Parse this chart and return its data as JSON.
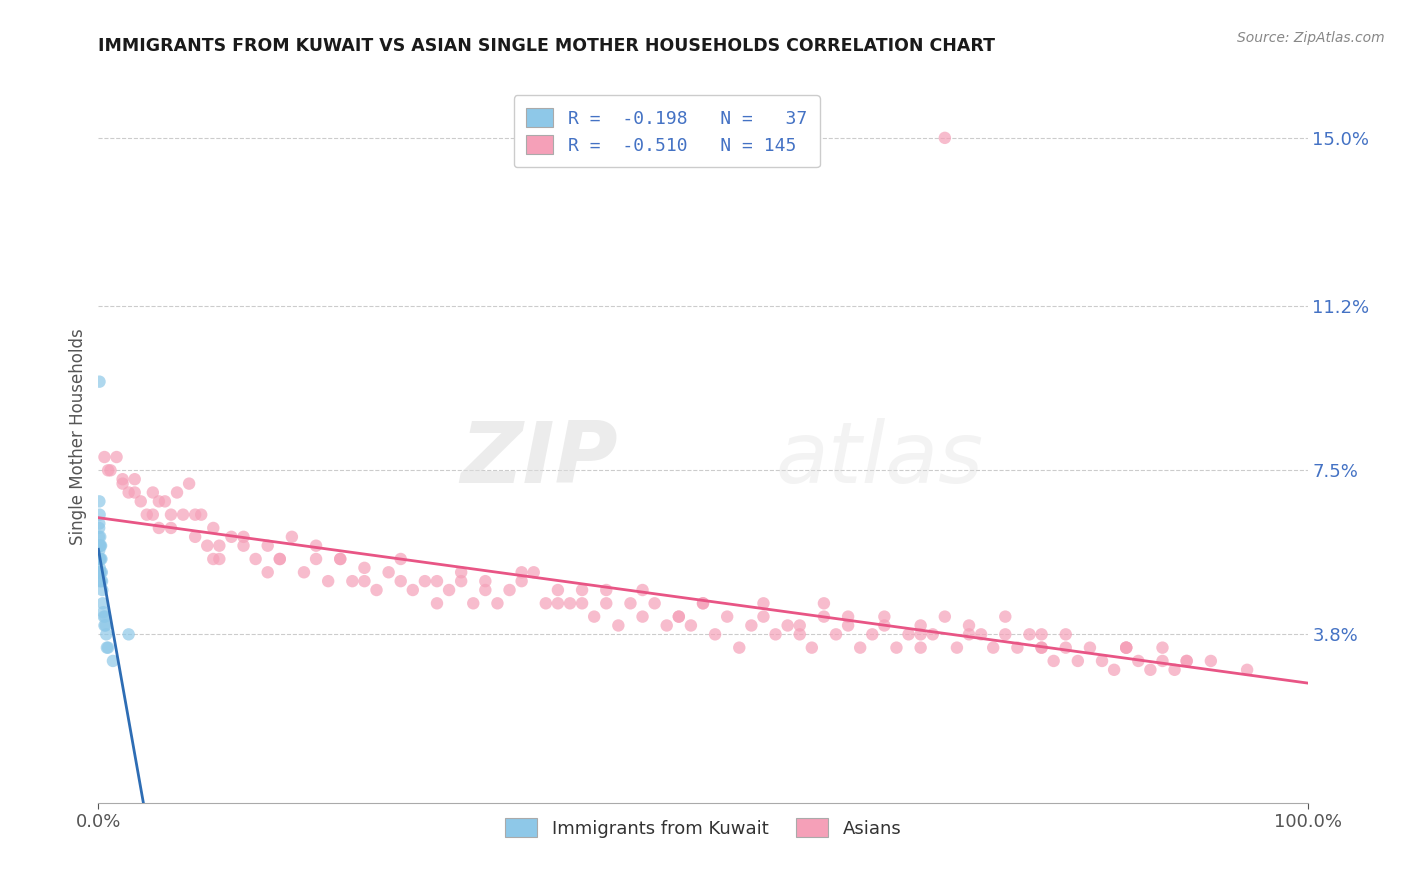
{
  "title": "IMMIGRANTS FROM KUWAIT VS ASIAN SINGLE MOTHER HOUSEHOLDS CORRELATION CHART",
  "source": "Source: ZipAtlas.com",
  "ylabel": "Single Mother Households",
  "xlim": [
    0,
    100
  ],
  "ylim": [
    0,
    16.5
  ],
  "yticks": [
    3.8,
    7.5,
    11.2,
    15.0
  ],
  "ytick_labels": [
    "3.8%",
    "7.5%",
    "11.2%",
    "15.0%"
  ],
  "xticks": [
    0,
    100
  ],
  "xtick_labels": [
    "0.0%",
    "100.0%"
  ],
  "color_kuwait": "#8EC8E8",
  "color_asian": "#F5A0B8",
  "trend_color_kuwait": "#2E6DB4",
  "trend_color_asian": "#E85585",
  "trend_color_kuwait_ext": "#BBCCDD",
  "watermark_zip": "ZIP",
  "watermark_atlas": "atlas",
  "background_color": "#FFFFFF",
  "kuwait_x": [
    0.05,
    0.05,
    0.06,
    0.06,
    0.07,
    0.07,
    0.08,
    0.08,
    0.09,
    0.09,
    0.1,
    0.1,
    0.11,
    0.12,
    0.13,
    0.14,
    0.15,
    0.16,
    0.17,
    0.18,
    0.2,
    0.22,
    0.25,
    0.28,
    0.3,
    0.32,
    0.35,
    0.4,
    0.45,
    0.5,
    0.55,
    0.6,
    0.65,
    0.7,
    0.8,
    1.2,
    2.5
  ],
  "kuwait_y": [
    6.0,
    5.5,
    6.2,
    5.8,
    6.3,
    5.7,
    6.8,
    5.5,
    9.5,
    5.2,
    6.5,
    5.0,
    5.3,
    5.8,
    5.5,
    5.2,
    6.0,
    5.8,
    5.5,
    5.2,
    5.0,
    5.8,
    5.5,
    5.2,
    5.0,
    4.8,
    4.5,
    4.3,
    4.2,
    4.0,
    4.2,
    4.0,
    3.8,
    3.5,
    3.5,
    3.2,
    3.8
  ],
  "asian_x": [
    0.5,
    0.8,
    1.0,
    1.5,
    2.0,
    2.5,
    3.0,
    3.5,
    4.0,
    4.5,
    5.0,
    5.5,
    6.0,
    6.5,
    7.0,
    7.5,
    8.0,
    8.5,
    9.0,
    9.5,
    10.0,
    11.0,
    12.0,
    13.0,
    14.0,
    15.0,
    16.0,
    17.0,
    18.0,
    19.0,
    20.0,
    21.0,
    22.0,
    23.0,
    24.0,
    25.0,
    26.0,
    27.0,
    28.0,
    29.0,
    30.0,
    31.0,
    32.0,
    33.0,
    34.0,
    35.0,
    36.0,
    37.0,
    38.0,
    39.0,
    40.0,
    41.0,
    42.0,
    43.0,
    44.0,
    45.0,
    46.0,
    47.0,
    48.0,
    49.0,
    50.0,
    51.0,
    52.0,
    53.0,
    54.0,
    55.0,
    56.0,
    57.0,
    58.0,
    59.0,
    60.0,
    61.0,
    62.0,
    63.0,
    64.0,
    65.0,
    66.0,
    67.0,
    68.0,
    69.0,
    70.0,
    71.0,
    72.0,
    73.0,
    74.0,
    75.0,
    76.0,
    77.0,
    78.0,
    79.0,
    80.0,
    81.0,
    82.0,
    83.0,
    84.0,
    85.0,
    86.0,
    87.0,
    88.0,
    89.0,
    90.0,
    3.0,
    5.0,
    8.0,
    12.0,
    18.0,
    25.0,
    35.0,
    45.0,
    55.0,
    65.0,
    75.0,
    85.0,
    90.0,
    15.0,
    28.0,
    42.0,
    60.0,
    72.0,
    80.0,
    2.0,
    6.0,
    10.0,
    20.0,
    30.0,
    40.0,
    50.0,
    62.0,
    68.0,
    78.0,
    85.0,
    92.0,
    4.5,
    9.5,
    14.0,
    22.0,
    32.0,
    38.0,
    48.0,
    58.0,
    68.0,
    78.0,
    88.0,
    95.0,
    70.0
  ],
  "asian_y": [
    7.8,
    7.5,
    7.5,
    7.8,
    7.2,
    7.0,
    7.3,
    6.8,
    6.5,
    7.0,
    6.2,
    6.8,
    6.5,
    7.0,
    6.5,
    7.2,
    6.0,
    6.5,
    5.8,
    6.2,
    5.5,
    6.0,
    5.8,
    5.5,
    5.8,
    5.5,
    6.0,
    5.2,
    5.5,
    5.0,
    5.5,
    5.0,
    5.3,
    4.8,
    5.2,
    5.0,
    4.8,
    5.0,
    4.5,
    4.8,
    5.2,
    4.5,
    5.0,
    4.5,
    4.8,
    5.0,
    5.2,
    4.5,
    4.8,
    4.5,
    4.5,
    4.2,
    4.8,
    4.0,
    4.5,
    4.2,
    4.5,
    4.0,
    4.2,
    4.0,
    4.5,
    3.8,
    4.2,
    3.5,
    4.0,
    4.2,
    3.8,
    4.0,
    3.8,
    3.5,
    4.5,
    3.8,
    4.0,
    3.5,
    3.8,
    4.0,
    3.5,
    3.8,
    3.5,
    3.8,
    4.2,
    3.5,
    4.0,
    3.8,
    3.5,
    4.2,
    3.5,
    3.8,
    3.5,
    3.2,
    3.8,
    3.2,
    3.5,
    3.2,
    3.0,
    3.5,
    3.2,
    3.0,
    3.5,
    3.0,
    3.2,
    7.0,
    6.8,
    6.5,
    6.0,
    5.8,
    5.5,
    5.2,
    4.8,
    4.5,
    4.2,
    3.8,
    3.5,
    3.2,
    5.5,
    5.0,
    4.5,
    4.2,
    3.8,
    3.5,
    7.3,
    6.2,
    5.8,
    5.5,
    5.0,
    4.8,
    4.5,
    4.2,
    4.0,
    3.8,
    3.5,
    3.2,
    6.5,
    5.5,
    5.2,
    5.0,
    4.8,
    4.5,
    4.2,
    4.0,
    3.8,
    3.5,
    3.2,
    3.0,
    15.0
  ]
}
